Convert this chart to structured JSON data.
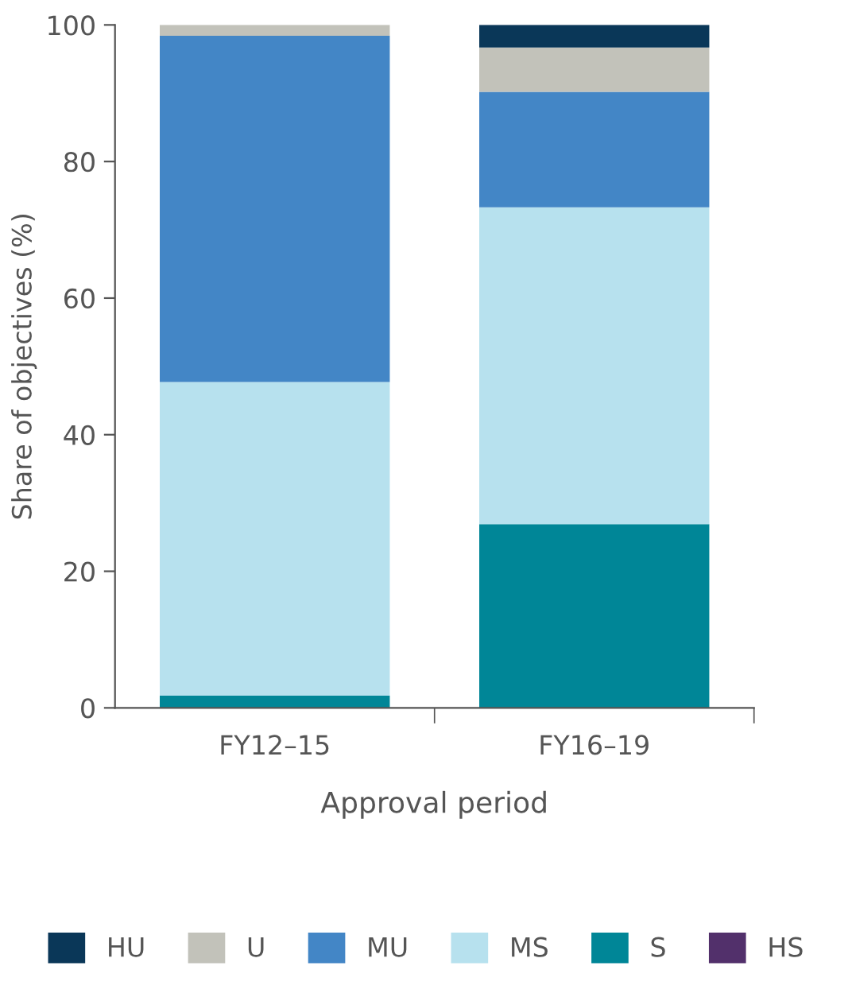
{
  "chart_data": {
    "type": "bar",
    "stacked": true,
    "xlabel": "Approval period",
    "ylabel": "Share of objectives (%)",
    "categories": [
      "FY12–15",
      "FY16–19"
    ],
    "series": [
      {
        "name": "HS",
        "color": "#52306b",
        "values": [
          0,
          0
        ]
      },
      {
        "name": "S",
        "color": "#008697",
        "values": [
          1.8,
          26.9
        ]
      },
      {
        "name": "MS",
        "color": "#b7e1ee",
        "values": [
          45.9,
          46.4
        ]
      },
      {
        "name": "MU",
        "color": "#4386c6",
        "values": [
          50.7,
          16.9
        ]
      },
      {
        "name": "U",
        "color": "#c2c2ba",
        "values": [
          1.6,
          6.5
        ]
      },
      {
        "name": "HU",
        "color": "#0a3758",
        "values": [
          0,
          3.3
        ]
      }
    ],
    "ylim": [
      0,
      100
    ],
    "yticks": [
      0,
      20,
      40,
      60,
      80,
      100
    ],
    "grid": false,
    "legend": "bottom"
  }
}
